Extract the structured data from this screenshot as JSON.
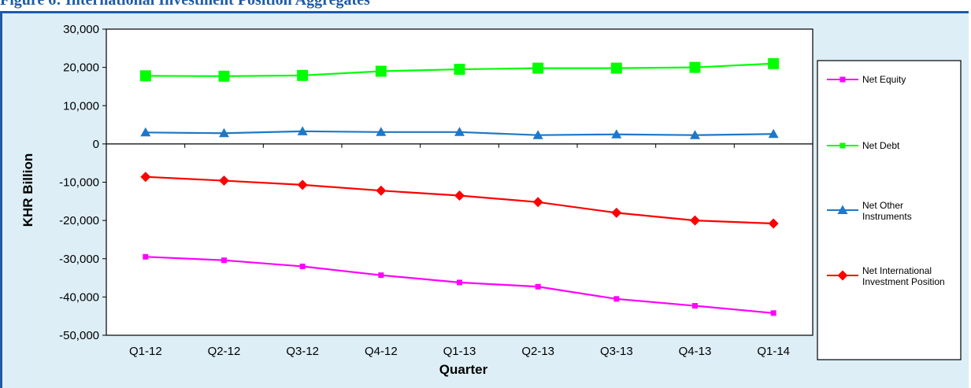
{
  "figure_title": "Figure 6: International Investment Position Aggregates",
  "chart_data": {
    "type": "line",
    "categories": [
      "Q1-12",
      "Q2-12",
      "Q3-12",
      "Q4-12",
      "Q1-13",
      "Q2-13",
      "Q3-13",
      "Q4-13",
      "Q1-14"
    ],
    "xlabel": "Quarter",
    "ylabel": "KHR Billion",
    "ylim": [
      -50000,
      30000
    ],
    "yticks": [
      30000,
      20000,
      10000,
      0,
      -10000,
      -20000,
      -30000,
      -40000,
      -50000
    ],
    "ytick_labels": [
      "30,000",
      "20,000",
      "10,000",
      "0",
      "-10,000",
      "-20,000",
      "-30,000",
      "-40,000",
      "-50,000"
    ],
    "grid": false,
    "legend_position": "right",
    "series": [
      {
        "name": "Net Equity",
        "color": "#ff00ff",
        "marker": "square-small",
        "values": [
          -29500,
          -30400,
          -32000,
          -34300,
          -36200,
          -37300,
          -40500,
          -42300,
          -44200
        ]
      },
      {
        "name": "Net Debt",
        "color": "#00ff00",
        "marker": "square-large",
        "values": [
          17800,
          17700,
          17900,
          19000,
          19500,
          19800,
          19800,
          20000,
          21000
        ]
      },
      {
        "name": "Net Other Instruments",
        "color": "#1e78c8",
        "marker": "triangle",
        "values": [
          3000,
          2800,
          3300,
          3100,
          3100,
          2300,
          2500,
          2300,
          2600
        ]
      },
      {
        "name": "Net International Investment Position",
        "color": "#ff0000",
        "marker": "diamond",
        "values": [
          -8600,
          -9600,
          -10700,
          -12200,
          -13500,
          -15200,
          -18000,
          -20000,
          -20800
        ]
      }
    ],
    "legend_lines": [
      [
        "Net Equity"
      ],
      [
        "Net Debt"
      ],
      [
        "Net Other",
        "Instruments"
      ],
      [
        "Net International",
        "Investment Position"
      ]
    ]
  }
}
